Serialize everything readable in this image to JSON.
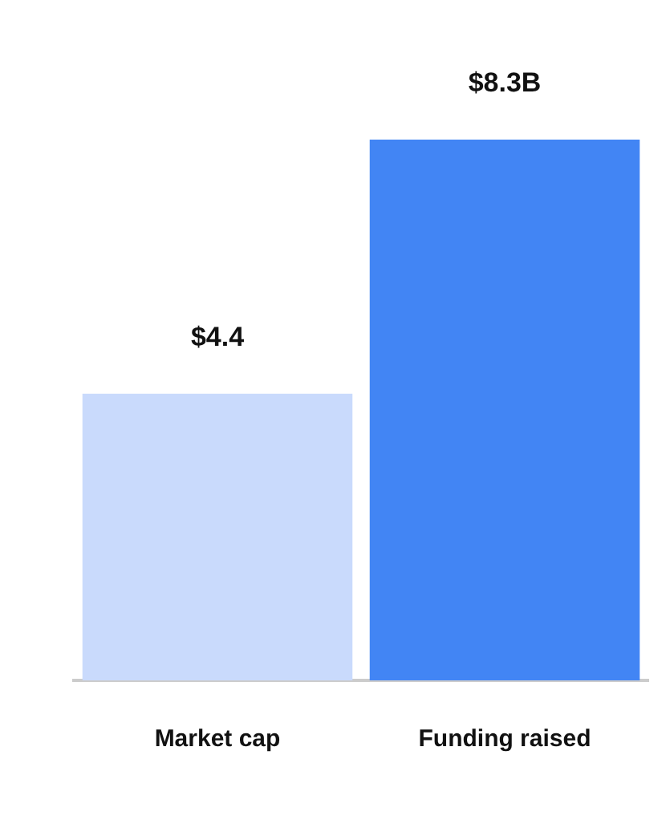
{
  "chart_data": {
    "type": "bar",
    "categories": [
      "Market cap",
      "Funding raised"
    ],
    "values": [
      4.4,
      8.3
    ],
    "colors": [
      "#c9dafc",
      "#4285f4"
    ],
    "value_labels": [
      "$4.4",
      "$8.3B"
    ],
    "grid": false,
    "legend": false
  }
}
